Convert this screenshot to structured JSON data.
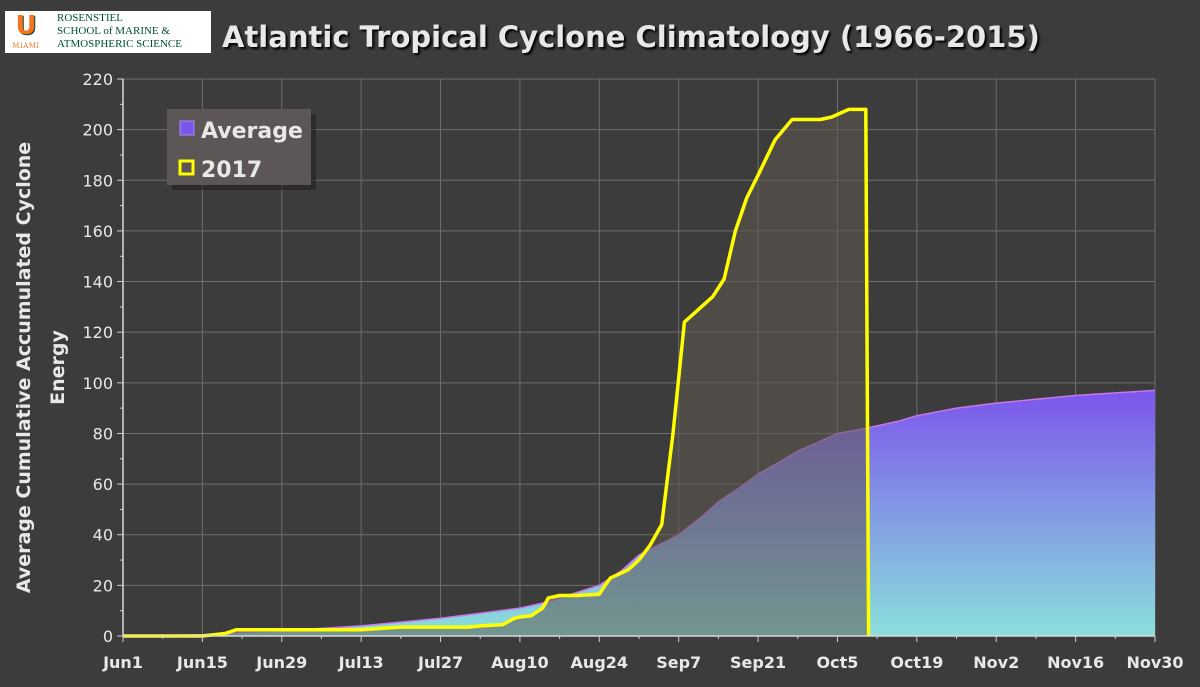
{
  "logo": {
    "mark": "U",
    "miami": "MIAMI",
    "line1": "ROSENSTIEL",
    "line2": "SCHOOL of MARINE &",
    "line3": "ATMOSPHERIC SCIENCE"
  },
  "colors": {
    "background": "#3c3c3c",
    "grid": "#6e6e6e",
    "average_fill_top": "#7c55ec",
    "average_fill_bottom": "#8ae0dc",
    "line_2017": "#ffff00",
    "fill_2017": "#5f5750",
    "text": "#e8e8e8"
  },
  "chart_data": {
    "type": "area",
    "title": "Atlantic Tropical Cyclone Climatology (1966-2015)",
    "xlabel": "",
    "ylabel_lines": [
      "Average Cumulative Accumulated Cyclone",
      "Energy"
    ],
    "xlim": [
      0,
      182
    ],
    "ylim": [
      0,
      220
    ],
    "y_ticks": [
      0,
      20,
      40,
      60,
      80,
      100,
      120,
      140,
      160,
      180,
      200,
      220
    ],
    "x_ticks": [
      {
        "day": 0,
        "label": "Jun1"
      },
      {
        "day": 14,
        "label": "Jun15"
      },
      {
        "day": 28,
        "label": "Jun29"
      },
      {
        "day": 42,
        "label": "Jul13"
      },
      {
        "day": 56,
        "label": "Jul27"
      },
      {
        "day": 70,
        "label": "Aug10"
      },
      {
        "day": 84,
        "label": "Aug24"
      },
      {
        "day": 98,
        "label": "Sep7"
      },
      {
        "day": 112,
        "label": "Sep21"
      },
      {
        "day": 126,
        "label": "Oct5"
      },
      {
        "day": 140,
        "label": "Oct19"
      },
      {
        "day": 154,
        "label": "Nov2"
      },
      {
        "day": 168,
        "label": "Nov16"
      },
      {
        "day": 182,
        "label": "Nov30"
      }
    ],
    "grid": true,
    "legend": {
      "placement": "top-left",
      "entries": [
        {
          "name": "Average",
          "style": "area"
        },
        {
          "name": "2017",
          "style": "line"
        }
      ]
    },
    "series": [
      {
        "name": "Average",
        "style": "area",
        "x": [
          0,
          14,
          21,
          28,
          35,
          42,
          49,
          56,
          63,
          70,
          74,
          77,
          84,
          88,
          91,
          98,
          102,
          105,
          109,
          112,
          116,
          119,
          123,
          126,
          131,
          133,
          137,
          140,
          147,
          154,
          161,
          168,
          175,
          182
        ],
        "y": [
          0,
          0.5,
          1.5,
          2,
          3,
          4,
          5.5,
          7,
          9,
          11,
          13,
          15,
          20,
          26,
          32,
          40,
          47,
          53,
          59,
          64,
          69,
          73,
          77,
          80,
          82,
          83,
          85,
          87,
          90,
          92,
          93.5,
          95,
          96,
          97
        ]
      },
      {
        "name": "2017",
        "style": "line",
        "x": [
          0,
          14,
          18,
          20,
          28,
          35,
          42,
          49,
          56,
          61,
          63,
          67,
          69,
          70,
          72,
          74,
          75,
          77,
          80,
          84,
          85,
          86,
          89,
          91,
          93,
          95,
          97,
          99,
          101,
          104,
          106,
          108,
          110,
          112,
          115,
          118,
          120,
          123,
          125,
          128,
          129,
          130,
          131,
          131.5
        ],
        "y": [
          0,
          0,
          1,
          2.5,
          2.5,
          2.5,
          2.5,
          3.5,
          3.5,
          3.5,
          4,
          4.5,
          7,
          7.5,
          8,
          11,
          15,
          16,
          16,
          16.5,
          20,
          23,
          26,
          30,
          36,
          44,
          80,
          124,
          128,
          134,
          141,
          160,
          173,
          182,
          196,
          204,
          204,
          204,
          205,
          208,
          208,
          208,
          208,
          0
        ]
      }
    ]
  }
}
